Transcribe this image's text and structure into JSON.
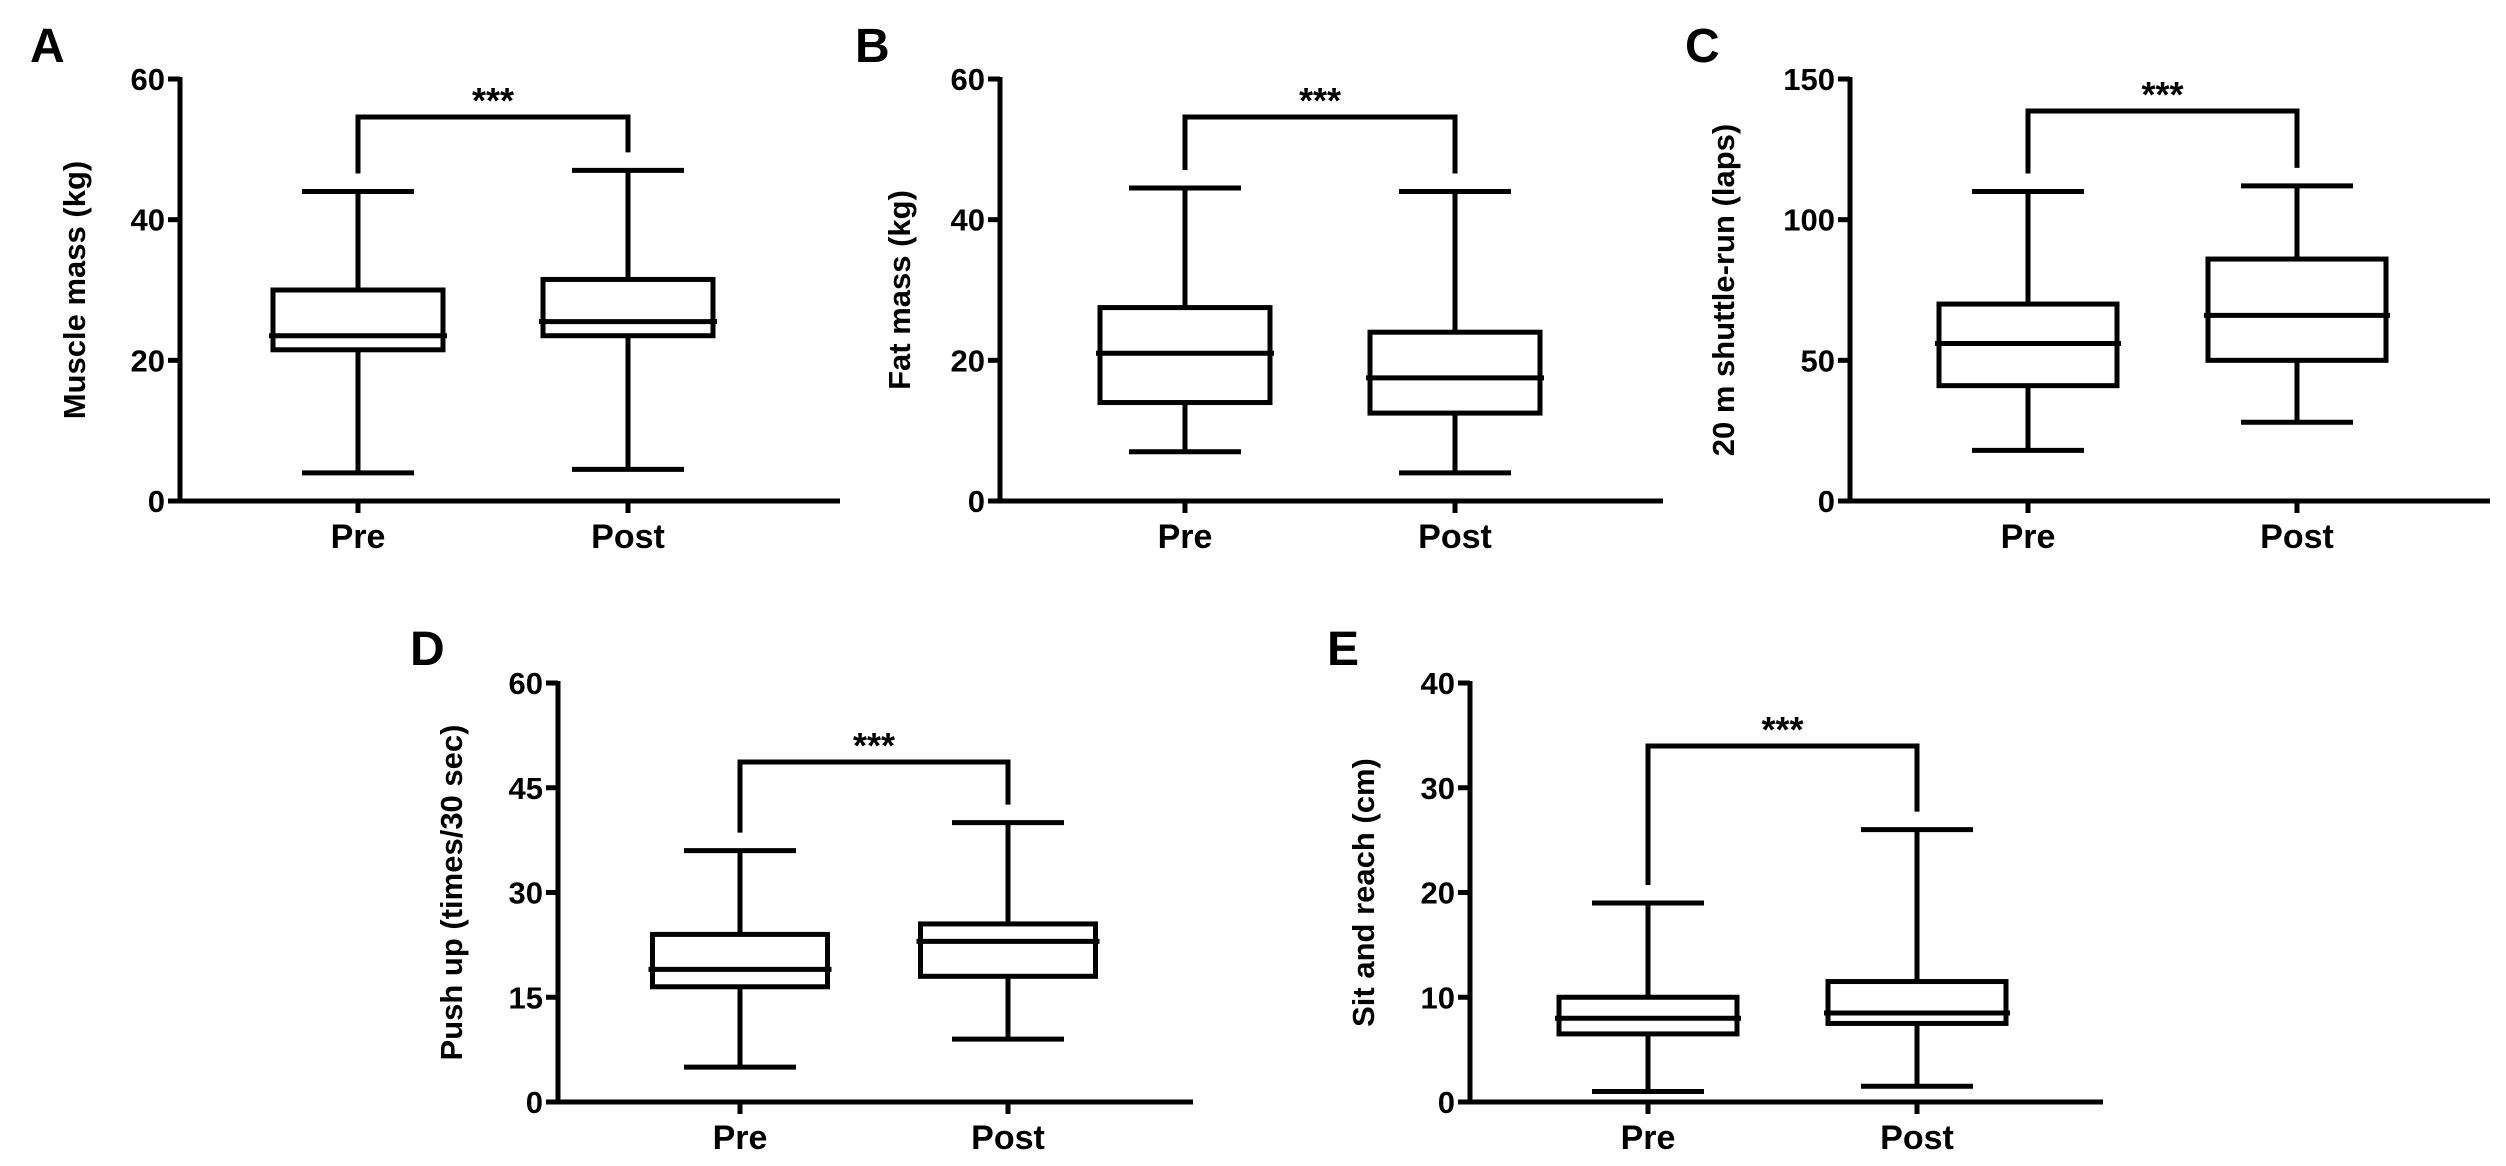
{
  "figure_colors": {
    "ink": "#000000",
    "background": "#ffffff"
  },
  "chart_data": [
    {
      "panel": "A",
      "type": "box",
      "ylabel": "Muscle mass (kg)",
      "categories": [
        "Pre",
        "Post"
      ],
      "ylim": [
        0,
        60
      ],
      "yticks": [
        0,
        20,
        40,
        60
      ],
      "boxes": [
        {
          "group": "Pre",
          "min": 4.0,
          "q1": 21.5,
          "median": 23.5,
          "q3": 30.0,
          "max": 44.0
        },
        {
          "group": "Post",
          "min": 4.5,
          "q1": 23.5,
          "median": 25.5,
          "q3": 31.5,
          "max": 47.0
        }
      ],
      "significance": "***"
    },
    {
      "panel": "B",
      "type": "box",
      "ylabel": "Fat mass (kg)",
      "categories": [
        "Pre",
        "Post"
      ],
      "ylim": [
        0,
        60
      ],
      "yticks": [
        0,
        20,
        40,
        60
      ],
      "boxes": [
        {
          "group": "Pre",
          "min": 7.0,
          "q1": 14.0,
          "median": 21.0,
          "q3": 27.5,
          "max": 44.5
        },
        {
          "group": "Post",
          "min": 4.0,
          "q1": 12.5,
          "median": 17.5,
          "q3": 24.0,
          "max": 44.0
        }
      ],
      "significance": "***"
    },
    {
      "panel": "C",
      "type": "box",
      "ylabel": "20 m shuttle-run (laps)",
      "categories": [
        "Pre",
        "Post"
      ],
      "ylim": [
        0,
        150
      ],
      "yticks": [
        0,
        50,
        100,
        150
      ],
      "boxes": [
        {
          "group": "Pre",
          "min": 18.0,
          "q1": 41.0,
          "median": 56.0,
          "q3": 70.0,
          "max": 110.0
        },
        {
          "group": "Post",
          "min": 28.0,
          "q1": 50.0,
          "median": 66.0,
          "q3": 86.0,
          "max": 112.0
        }
      ],
      "significance": "***"
    },
    {
      "panel": "D",
      "type": "box",
      "ylabel": "Push up (times/30 sec)",
      "categories": [
        "Pre",
        "Post"
      ],
      "ylim": [
        0,
        60
      ],
      "yticks": [
        0,
        15,
        30,
        45,
        60
      ],
      "boxes": [
        {
          "group": "Pre",
          "min": 5.0,
          "q1": 16.5,
          "median": 19.0,
          "q3": 24.0,
          "max": 36.0
        },
        {
          "group": "Post",
          "min": 9.0,
          "q1": 18.0,
          "median": 23.0,
          "q3": 25.5,
          "max": 40.0
        }
      ],
      "significance": "***"
    },
    {
      "panel": "E",
      "type": "box",
      "ylabel": "Sit and reach (cm)",
      "categories": [
        "Pre",
        "Post"
      ],
      "ylim": [
        0,
        40
      ],
      "yticks": [
        0,
        10,
        20,
        30,
        40
      ],
      "boxes": [
        {
          "group": "Pre",
          "min": 1.0,
          "q1": 6.5,
          "median": 8.0,
          "q3": 10.0,
          "max": 19.0
        },
        {
          "group": "Post",
          "min": 1.5,
          "q1": 7.5,
          "median": 8.5,
          "q3": 11.5,
          "max": 26.0
        }
      ],
      "significance": "***"
    }
  ]
}
